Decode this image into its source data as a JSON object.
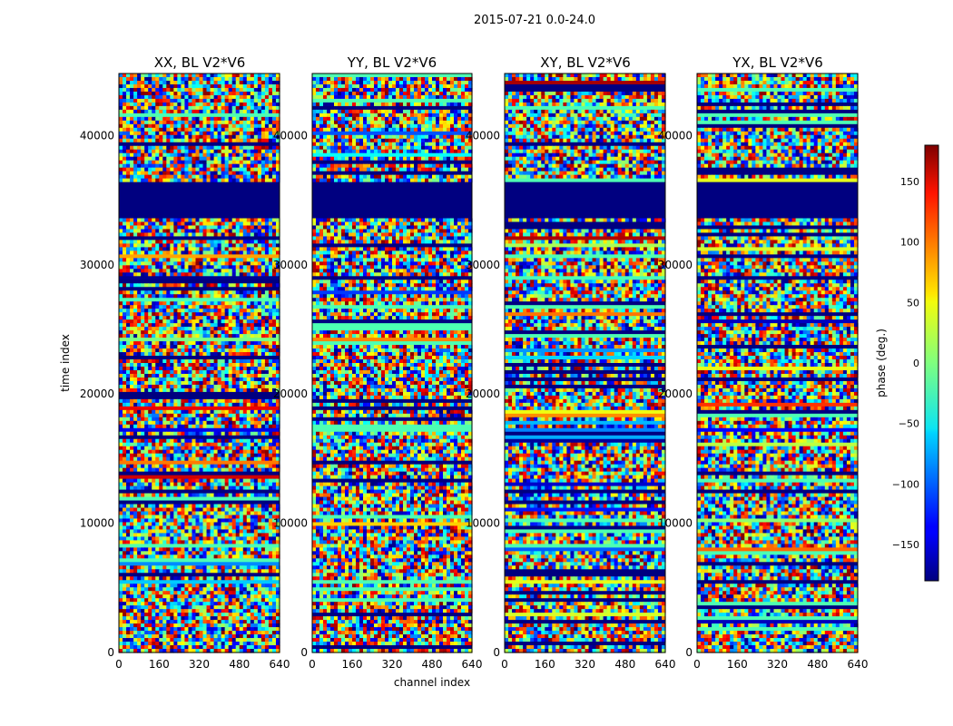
{
  "chart_data": {
    "type": "heatmap",
    "suptitle": "2015-07-21 0.0-24.0",
    "xlabel": "channel index",
    "ylabel": "time index",
    "xlim": [
      0,
      640
    ],
    "ylim": [
      0,
      44800
    ],
    "xticks": [
      0,
      160,
      320,
      480,
      640
    ],
    "yticks": [
      0,
      10000,
      20000,
      30000,
      40000
    ],
    "panels": [
      {
        "title": "XX, BL V2*V6",
        "id": "xx"
      },
      {
        "title": "YY, BL V2*V6",
        "id": "yy"
      },
      {
        "title": "XY, BL V2*V6",
        "id": "xy"
      },
      {
        "title": "YX, BL V2*V6",
        "id": "yx"
      }
    ],
    "colorbar": {
      "label": "phase (deg.)",
      "range": [
        -180,
        180
      ],
      "ticks": [
        -150,
        -100,
        -50,
        0,
        50,
        100,
        150
      ],
      "colormap": "jet"
    },
    "flagged_time_ranges": [
      [
        33600,
        36400
      ]
    ],
    "description_note": "Each panel shows per-channel visibility phase (noise-like, random values in [-180,180] deg) versus time index; horizontal bands of near-constant phase appear at various times; time range 33600-36400 is flagged (phase -180, dark blue) in all panels."
  }
}
